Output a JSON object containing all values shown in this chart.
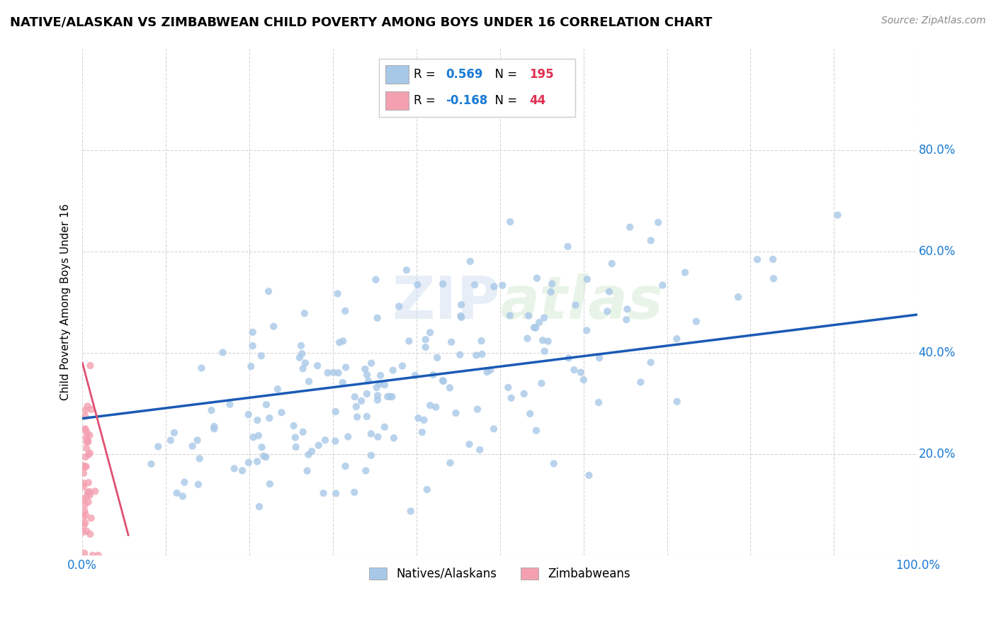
{
  "title": "NATIVE/ALASKAN VS ZIMBABWEAN CHILD POVERTY AMONG BOYS UNDER 16 CORRELATION CHART",
  "source": "Source: ZipAtlas.com",
  "ylabel": "Child Poverty Among Boys Under 16",
  "watermark": "ZIPatlas",
  "blue_R": 0.569,
  "blue_N": 195,
  "pink_R": -0.168,
  "pink_N": 44,
  "blue_color": "#a8c8e8",
  "pink_color": "#f4a0b0",
  "blue_line_color": "#1a5ab5",
  "pink_line_color": "#e05070",
  "legend_R_color": "#1a7ad4",
  "legend_N_color": "#e03050",
  "axis_label_color": "#1a7ad4",
  "grid_color": "#cccccc",
  "background_color": "#ffffff",
  "legend_label_blue": "Natives/Alaskans",
  "legend_label_pink": "Zimbabweans",
  "blue_trend": [
    0.0,
    0.27,
    1.0,
    0.475
  ],
  "pink_trend": [
    0.0,
    0.38,
    0.055,
    0.04
  ]
}
